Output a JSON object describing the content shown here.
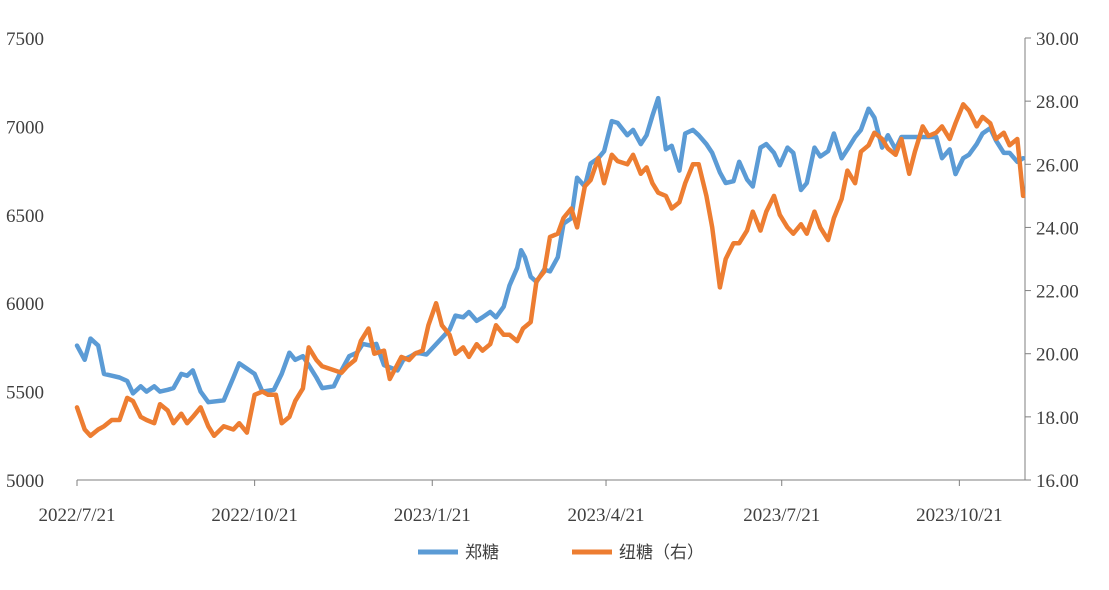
{
  "chart_data": {
    "type": "line",
    "title": "",
    "xlabel": "",
    "ylabel": "",
    "x_tick_labels": [
      "2022/7/21",
      "2022/10/21",
      "2023/1/21",
      "2023/4/21",
      "2023/7/21",
      "2023/10/21"
    ],
    "y_left": {
      "lim": [
        5000,
        7500
      ],
      "ticks": [
        "5000",
        "5500",
        "6000",
        "6500",
        "7000",
        "7500"
      ]
    },
    "y_right": {
      "lim": [
        16,
        30
      ],
      "ticks": [
        "16.00",
        "18.00",
        "20.00",
        "22.00",
        "24.00",
        "26.00",
        "28.00",
        "30.00"
      ]
    },
    "grid": false,
    "legend": "bottom-center",
    "series": [
      {
        "name": "郑糖",
        "axis": "left",
        "color": "#5B9BD5",
        "points": [
          [
            "2022-07-21",
            5760
          ],
          [
            "2022-07-25",
            5680
          ],
          [
            "2022-07-28",
            5800
          ],
          [
            "2022-08-01",
            5760
          ],
          [
            "2022-08-04",
            5600
          ],
          [
            "2022-08-08",
            5590
          ],
          [
            "2022-08-12",
            5580
          ],
          [
            "2022-08-16",
            5560
          ],
          [
            "2022-08-19",
            5490
          ],
          [
            "2022-08-23",
            5530
          ],
          [
            "2022-08-26",
            5500
          ],
          [
            "2022-08-30",
            5530
          ],
          [
            "2022-09-02",
            5500
          ],
          [
            "2022-09-06",
            5510
          ],
          [
            "2022-09-09",
            5520
          ],
          [
            "2022-09-13",
            5600
          ],
          [
            "2022-09-16",
            5590
          ],
          [
            "2022-09-19",
            5620
          ],
          [
            "2022-09-23",
            5500
          ],
          [
            "2022-09-27",
            5440
          ],
          [
            "2022-10-05",
            5450
          ],
          [
            "2022-10-10",
            5580
          ],
          [
            "2022-10-13",
            5660
          ],
          [
            "2022-10-17",
            5630
          ],
          [
            "2022-10-21",
            5600
          ],
          [
            "2022-10-25",
            5500
          ],
          [
            "2022-10-31",
            5510
          ],
          [
            "2022-11-04",
            5600
          ],
          [
            "2022-11-08",
            5720
          ],
          [
            "2022-11-11",
            5680
          ],
          [
            "2022-11-15",
            5700
          ],
          [
            "2022-11-18",
            5650
          ],
          [
            "2022-11-22",
            5580
          ],
          [
            "2022-11-25",
            5520
          ],
          [
            "2022-12-01",
            5530
          ],
          [
            "2022-12-05",
            5620
          ],
          [
            "2022-12-09",
            5700
          ],
          [
            "2022-12-13",
            5720
          ],
          [
            "2022-12-16",
            5770
          ],
          [
            "2022-12-20",
            5760
          ],
          [
            "2022-12-23",
            5770
          ],
          [
            "2022-12-27",
            5650
          ],
          [
            "2023-01-03",
            5620
          ],
          [
            "2023-01-06",
            5680
          ],
          [
            "2023-01-10",
            5700
          ],
          [
            "2023-01-13",
            5720
          ],
          [
            "2023-01-18",
            5710
          ],
          [
            "2023-01-30",
            5850
          ],
          [
            "2023-02-02",
            5930
          ],
          [
            "2023-02-06",
            5920
          ],
          [
            "2023-02-09",
            5950
          ],
          [
            "2023-02-13",
            5900
          ],
          [
            "2023-02-16",
            5920
          ],
          [
            "2023-02-20",
            5950
          ],
          [
            "2023-02-23",
            5920
          ],
          [
            "2023-02-27",
            5980
          ],
          [
            "2023-03-02",
            6100
          ],
          [
            "2023-03-06",
            6200
          ],
          [
            "2023-03-08",
            6300
          ],
          [
            "2023-03-10",
            6260
          ],
          [
            "2023-03-13",
            6150
          ],
          [
            "2023-03-16",
            6120
          ],
          [
            "2023-03-20",
            6190
          ],
          [
            "2023-03-23",
            6180
          ],
          [
            "2023-03-27",
            6260
          ],
          [
            "2023-03-30",
            6450
          ],
          [
            "2023-04-03",
            6480
          ],
          [
            "2023-04-06",
            6710
          ],
          [
            "2023-04-10",
            6660
          ],
          [
            "2023-04-13",
            6790
          ],
          [
            "2023-04-17",
            6820
          ],
          [
            "2023-04-20",
            6860
          ],
          [
            "2023-04-24",
            7030
          ],
          [
            "2023-04-27",
            7020
          ],
          [
            "2023-05-02",
            6950
          ],
          [
            "2023-05-05",
            6980
          ],
          [
            "2023-05-09",
            6900
          ],
          [
            "2023-05-12",
            6950
          ],
          [
            "2023-05-15",
            7060
          ],
          [
            "2023-05-18",
            7160
          ],
          [
            "2023-05-22",
            6870
          ],
          [
            "2023-05-25",
            6890
          ],
          [
            "2023-05-29",
            6750
          ],
          [
            "2023-06-01",
            6960
          ],
          [
            "2023-06-05",
            6980
          ],
          [
            "2023-06-08",
            6950
          ],
          [
            "2023-06-12",
            6900
          ],
          [
            "2023-06-15",
            6850
          ],
          [
            "2023-06-19",
            6740
          ],
          [
            "2023-06-22",
            6680
          ],
          [
            "2023-06-26",
            6690
          ],
          [
            "2023-06-29",
            6800
          ],
          [
            "2023-07-03",
            6700
          ],
          [
            "2023-07-06",
            6660
          ],
          [
            "2023-07-10",
            6880
          ],
          [
            "2023-07-13",
            6900
          ],
          [
            "2023-07-17",
            6850
          ],
          [
            "2023-07-20",
            6780
          ],
          [
            "2023-07-24",
            6880
          ],
          [
            "2023-07-27",
            6850
          ],
          [
            "2023-07-31",
            6640
          ],
          [
            "2023-08-03",
            6680
          ],
          [
            "2023-08-07",
            6880
          ],
          [
            "2023-08-10",
            6830
          ],
          [
            "2023-08-14",
            6860
          ],
          [
            "2023-08-17",
            6960
          ],
          [
            "2023-08-21",
            6820
          ],
          [
            "2023-08-24",
            6870
          ],
          [
            "2023-08-28",
            6940
          ],
          [
            "2023-08-31",
            6980
          ],
          [
            "2023-09-04",
            7100
          ],
          [
            "2023-09-07",
            7050
          ],
          [
            "2023-09-11",
            6880
          ],
          [
            "2023-09-14",
            6950
          ],
          [
            "2023-09-18",
            6870
          ],
          [
            "2023-09-21",
            6940
          ],
          [
            "2023-09-25",
            6940
          ],
          [
            "2023-10-09",
            6940
          ],
          [
            "2023-10-12",
            6820
          ],
          [
            "2023-10-16",
            6870
          ],
          [
            "2023-10-19",
            6730
          ],
          [
            "2023-10-23",
            6820
          ],
          [
            "2023-10-26",
            6840
          ],
          [
            "2023-10-30",
            6900
          ],
          [
            "2023-11-02",
            6960
          ],
          [
            "2023-11-06",
            6990
          ],
          [
            "2023-11-09",
            6920
          ],
          [
            "2023-11-13",
            6850
          ],
          [
            "2023-11-16",
            6850
          ],
          [
            "2023-11-20",
            6800
          ],
          [
            "2023-11-23",
            6820
          ]
        ]
      },
      {
        "name": "纽糖（右）",
        "axis": "right",
        "color": "#ED7D31",
        "points": [
          [
            "2022-07-21",
            18.3
          ],
          [
            "2022-07-25",
            17.6
          ],
          [
            "2022-07-28",
            17.4
          ],
          [
            "2022-08-01",
            17.6
          ],
          [
            "2022-08-04",
            17.7
          ],
          [
            "2022-08-08",
            17.9
          ],
          [
            "2022-08-12",
            17.9
          ],
          [
            "2022-08-16",
            18.6
          ],
          [
            "2022-08-19",
            18.5
          ],
          [
            "2022-08-23",
            18.0
          ],
          [
            "2022-08-26",
            17.9
          ],
          [
            "2022-08-30",
            17.8
          ],
          [
            "2022-09-02",
            18.4
          ],
          [
            "2022-09-06",
            18.2
          ],
          [
            "2022-09-09",
            17.8
          ],
          [
            "2022-09-13",
            18.1
          ],
          [
            "2022-09-16",
            17.8
          ],
          [
            "2022-09-19",
            18.0
          ],
          [
            "2022-09-23",
            18.3
          ],
          [
            "2022-09-27",
            17.7
          ],
          [
            "2022-09-30",
            17.4
          ],
          [
            "2022-10-05",
            17.7
          ],
          [
            "2022-10-10",
            17.6
          ],
          [
            "2022-10-13",
            17.8
          ],
          [
            "2022-10-17",
            17.5
          ],
          [
            "2022-10-21",
            18.7
          ],
          [
            "2022-10-25",
            18.8
          ],
          [
            "2022-10-28",
            18.7
          ],
          [
            "2022-11-01",
            18.7
          ],
          [
            "2022-11-04",
            17.8
          ],
          [
            "2022-11-08",
            18.0
          ],
          [
            "2022-11-11",
            18.5
          ],
          [
            "2022-11-15",
            18.9
          ],
          [
            "2022-11-18",
            20.2
          ],
          [
            "2022-11-22",
            19.8
          ],
          [
            "2022-11-25",
            19.6
          ],
          [
            "2022-11-30",
            19.5
          ],
          [
            "2022-12-05",
            19.4
          ],
          [
            "2022-12-08",
            19.6
          ],
          [
            "2022-12-12",
            19.8
          ],
          [
            "2022-12-15",
            20.4
          ],
          [
            "2022-12-19",
            20.8
          ],
          [
            "2022-12-22",
            20.0
          ],
          [
            "2022-12-27",
            20.1
          ],
          [
            "2022-12-30",
            19.2
          ],
          [
            "2023-01-05",
            19.9
          ],
          [
            "2023-01-09",
            19.8
          ],
          [
            "2023-01-12",
            20.0
          ],
          [
            "2023-01-16",
            20.1
          ],
          [
            "2023-01-19",
            20.9
          ],
          [
            "2023-01-23",
            21.6
          ],
          [
            "2023-01-26",
            20.9
          ],
          [
            "2023-01-30",
            20.6
          ],
          [
            "2023-02-02",
            20.0
          ],
          [
            "2023-02-06",
            20.2
          ],
          [
            "2023-02-09",
            19.9
          ],
          [
            "2023-02-13",
            20.3
          ],
          [
            "2023-02-16",
            20.1
          ],
          [
            "2023-02-20",
            20.3
          ],
          [
            "2023-02-23",
            20.9
          ],
          [
            "2023-02-27",
            20.6
          ],
          [
            "2023-03-02",
            20.6
          ],
          [
            "2023-03-06",
            20.4
          ],
          [
            "2023-03-09",
            20.8
          ],
          [
            "2023-03-13",
            21.0
          ],
          [
            "2023-03-16",
            22.3
          ],
          [
            "2023-03-20",
            22.6
          ],
          [
            "2023-03-23",
            23.7
          ],
          [
            "2023-03-27",
            23.8
          ],
          [
            "2023-03-30",
            24.3
          ],
          [
            "2023-04-03",
            24.6
          ],
          [
            "2023-04-06",
            24.0
          ],
          [
            "2023-04-10",
            25.3
          ],
          [
            "2023-04-13",
            25.5
          ],
          [
            "2023-04-17",
            26.2
          ],
          [
            "2023-04-20",
            25.4
          ],
          [
            "2023-04-24",
            26.3
          ],
          [
            "2023-04-27",
            26.1
          ],
          [
            "2023-05-02",
            26.0
          ],
          [
            "2023-05-05",
            26.3
          ],
          [
            "2023-05-09",
            25.7
          ],
          [
            "2023-05-12",
            25.9
          ],
          [
            "2023-05-15",
            25.4
          ],
          [
            "2023-05-18",
            25.1
          ],
          [
            "2023-05-22",
            25.0
          ],
          [
            "2023-05-25",
            24.6
          ],
          [
            "2023-05-29",
            24.8
          ],
          [
            "2023-06-01",
            25.4
          ],
          [
            "2023-06-05",
            26.0
          ],
          [
            "2023-06-08",
            26.0
          ],
          [
            "2023-06-12",
            25.0
          ],
          [
            "2023-06-15",
            24.0
          ],
          [
            "2023-06-19",
            22.1
          ],
          [
            "2023-06-22",
            23.0
          ],
          [
            "2023-06-26",
            23.5
          ],
          [
            "2023-06-29",
            23.5
          ],
          [
            "2023-07-03",
            23.9
          ],
          [
            "2023-07-06",
            24.5
          ],
          [
            "2023-07-10",
            23.9
          ],
          [
            "2023-07-13",
            24.5
          ],
          [
            "2023-07-17",
            25.0
          ],
          [
            "2023-07-20",
            24.4
          ],
          [
            "2023-07-24",
            24.0
          ],
          [
            "2023-07-27",
            23.8
          ],
          [
            "2023-07-31",
            24.1
          ],
          [
            "2023-08-03",
            23.8
          ],
          [
            "2023-08-07",
            24.5
          ],
          [
            "2023-08-10",
            24.0
          ],
          [
            "2023-08-14",
            23.6
          ],
          [
            "2023-08-17",
            24.3
          ],
          [
            "2023-08-21",
            24.9
          ],
          [
            "2023-08-24",
            25.8
          ],
          [
            "2023-08-28",
            25.4
          ],
          [
            "2023-08-31",
            26.4
          ],
          [
            "2023-09-04",
            26.6
          ],
          [
            "2023-09-07",
            27.0
          ],
          [
            "2023-09-11",
            26.8
          ],
          [
            "2023-09-14",
            26.5
          ],
          [
            "2023-09-18",
            26.3
          ],
          [
            "2023-09-21",
            26.8
          ],
          [
            "2023-09-25",
            25.7
          ],
          [
            "2023-09-28",
            26.4
          ],
          [
            "2023-10-02",
            27.2
          ],
          [
            "2023-10-05",
            26.9
          ],
          [
            "2023-10-09",
            27.0
          ],
          [
            "2023-10-12",
            27.2
          ],
          [
            "2023-10-16",
            26.8
          ],
          [
            "2023-10-19",
            27.3
          ],
          [
            "2023-10-23",
            27.9
          ],
          [
            "2023-10-26",
            27.7
          ],
          [
            "2023-10-30",
            27.2
          ],
          [
            "2023-11-02",
            27.5
          ],
          [
            "2023-11-06",
            27.3
          ],
          [
            "2023-11-09",
            26.8
          ],
          [
            "2023-11-13",
            27.0
          ],
          [
            "2023-11-16",
            26.6
          ],
          [
            "2023-11-20",
            26.8
          ],
          [
            "2023-11-23",
            25.0
          ]
        ]
      }
    ]
  }
}
